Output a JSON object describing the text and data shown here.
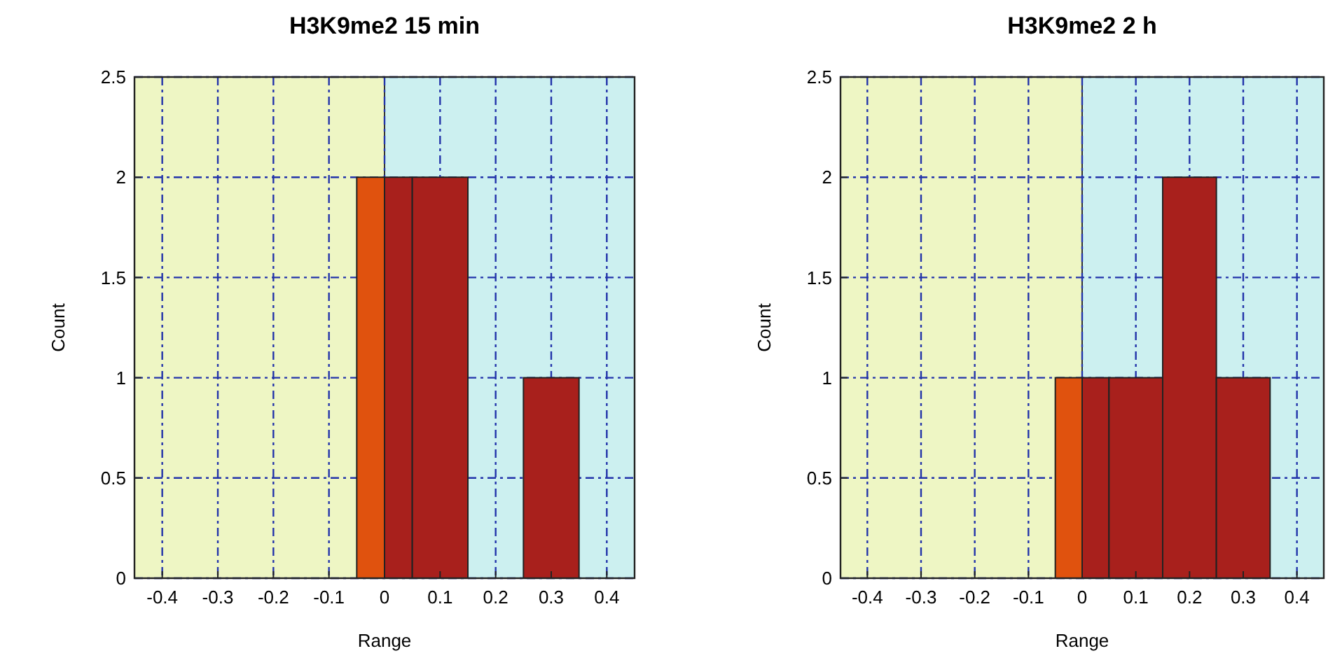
{
  "chart_data": [
    {
      "type": "histogram",
      "title": "H3K9me2 15 min",
      "xlabel": "Range",
      "ylabel": "Count",
      "bins": [
        -0.05,
        0,
        0.05,
        0.15,
        0.25,
        0.35
      ],
      "values": [
        2,
        2,
        2,
        0,
        1
      ],
      "colors": [
        "#e0520e",
        "#a8201c",
        "#a8201c",
        "#a8201c",
        "#a8201c"
      ],
      "xlim": [
        -0.45,
        0.45
      ],
      "xticks": [
        -0.4,
        -0.3,
        -0.2,
        -0.1,
        0,
        0.1,
        0.2,
        0.3,
        0.4
      ],
      "ylim": [
        0,
        2.5
      ],
      "yticks": [
        0,
        0.5,
        1,
        1.5,
        2,
        2.5
      ],
      "grid": true,
      "bands": [
        {
          "axis": "x",
          "from": -0.45,
          "to": 0,
          "color": "#eef6c4"
        },
        {
          "axis": "x",
          "from": 0,
          "to": 0.45,
          "color": "#ccf0f0"
        }
      ]
    },
    {
      "type": "histogram",
      "title": "H3K9me2 2 h",
      "xlabel": "Range",
      "ylabel": "Count",
      "bins": [
        -0.05,
        0,
        0.05,
        0.15,
        0.25,
        0.35
      ],
      "values": [
        1,
        1,
        1,
        2,
        1
      ],
      "colors": [
        "#e0520e",
        "#a8201c",
        "#a8201c",
        "#a8201c",
        "#a8201c"
      ],
      "xlim": [
        -0.45,
        0.45
      ],
      "xticks": [
        -0.4,
        -0.3,
        -0.2,
        -0.1,
        0,
        0.1,
        0.2,
        0.3,
        0.4
      ],
      "ylim": [
        0,
        2.5
      ],
      "yticks": [
        0,
        0.5,
        1,
        1.5,
        2,
        2.5
      ],
      "grid": true,
      "bands": [
        {
          "axis": "x",
          "from": -0.45,
          "to": 0,
          "color": "#eef6c4"
        },
        {
          "axis": "x",
          "from": 0,
          "to": 0.45,
          "color": "#ccf0f0"
        }
      ]
    }
  ]
}
